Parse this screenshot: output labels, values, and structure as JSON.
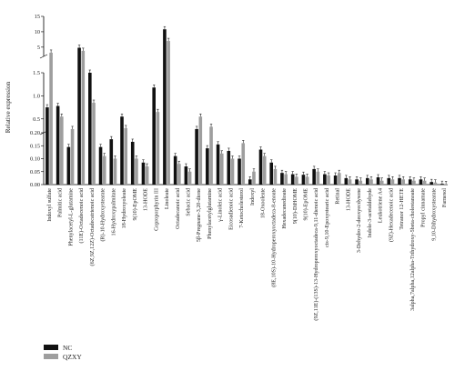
{
  "chart_data": {
    "type": "bar",
    "ylabel": "Relative expression",
    "broken_axis": true,
    "segments": [
      {
        "range": [
          0,
          0.2
        ],
        "ticks": [
          "0.00",
          "0.05",
          "0.10",
          "0.15",
          "0.20"
        ]
      },
      {
        "range": [
          0.2,
          1.5
        ],
        "ticks": [
          "0.5",
          "1.0",
          "1.5"
        ]
      },
      {
        "range": [
          2,
          15
        ],
        "ticks": [
          "5",
          "10",
          "15"
        ]
      }
    ],
    "categories": [
      "Indoxyl sulfate",
      "Palmitic acid",
      "Phenylacetyl-L-glutamine",
      "(11E)-Octadecenoic acid",
      "(6Z,9Z,12Z)-Octadecatrienoic acid",
      "(R)-10-Hydroxystearate",
      "16-Hydroxypalmitate",
      "18-Hydroxyoleate",
      "9(10)-EpOME",
      "13-HODE",
      "Coproporphyrin III",
      "Linoleate",
      "Octadecanoic acid",
      "Sebacic acid",
      "5β-Pregnane-3,20-dione",
      "Phenylacetylglutamine",
      "γ-Linoleic acid",
      "Eicosadienoic acid",
      "7-Ketocholesterol",
      "Indoxyl",
      "18-Oxooleate",
      "(8E,10S)-10-Hydroperoxyoctadeca-8-enoate",
      "Hexadecanedioate",
      "9(10)-DiHOME",
      "9(10)-EpOME",
      "(9Z,11E)-(13S)-13-Hydroperoxyoctadeca-9,11-dienoic acid",
      "cis-9,10-Epoxystearic acid",
      "Retinal",
      "13-HODE",
      "3-Dehydro-2-deoxyecdysone",
      "Indole-3-acetaldehyde",
      "Leukotriene A4",
      "(9Z)-Hexadecenoic acid",
      "Tetranor 12-HETE",
      "3alpha,7alpha,12alpha-Trihydroxy-5beta-cholestanoate",
      "Propyl cinnamate",
      "9,10-Dihydroxystearate",
      "Farnesol"
    ],
    "series": [
      {
        "name": "NC",
        "color": "#111111",
        "values": [
          0.75,
          0.78,
          0.145,
          4.8,
          1.5,
          0.145,
          0.175,
          0.55,
          0.165,
          0.085,
          1.18,
          10.8,
          0.11,
          0.07,
          0.28,
          0.14,
          0.155,
          0.13,
          0.1,
          0.02,
          0.135,
          0.085,
          0.045,
          0.04,
          0.038,
          0.06,
          0.04,
          0.035,
          0.025,
          0.02,
          0.025,
          0.028,
          0.025,
          0.025,
          0.02,
          0.02,
          0.01,
          0.003
        ]
      },
      {
        "name": "QZXY",
        "color": "#9e9e9e",
        "values": [
          3.2,
          0.55,
          0.28,
          3.8,
          0.85,
          0.11,
          0.1,
          0.3,
          0.1,
          0.07,
          0.65,
          7.0,
          0.08,
          0.05,
          0.55,
          0.33,
          0.12,
          0.1,
          0.16,
          0.05,
          0.11,
          0.06,
          0.04,
          0.03,
          0.03,
          0.05,
          0.035,
          0.045,
          0.02,
          0.015,
          0.02,
          0.015,
          0.02,
          0.02,
          0.015,
          0.015,
          0.008,
          0.002
        ]
      }
    ],
    "legend": {
      "position": "bottom-left",
      "entries": [
        "NC",
        "QZXY"
      ]
    }
  }
}
